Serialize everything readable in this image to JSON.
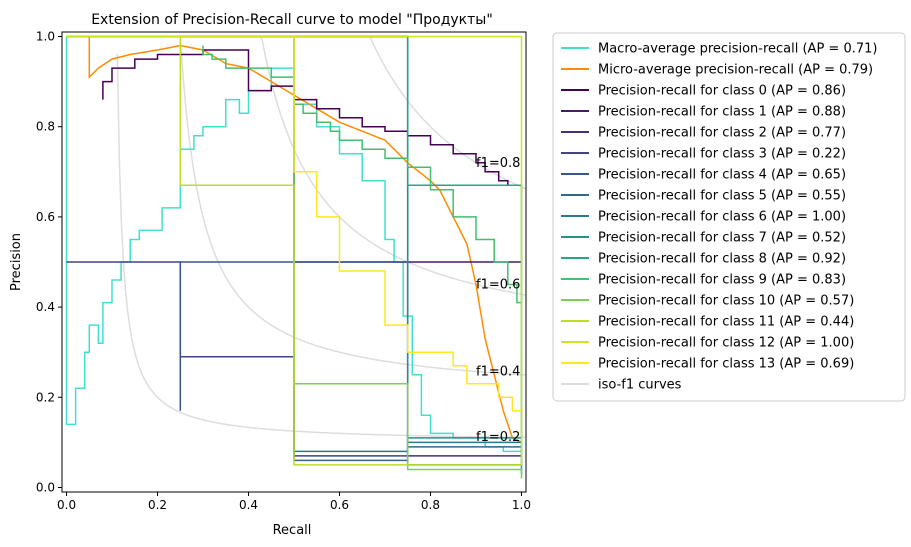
{
  "chart_data": {
    "type": "line",
    "title": "Extension of Precision-Recall curve to model \"Продукты\"",
    "xlabel": "Recall",
    "ylabel": "Precision",
    "xlim": [
      -0.01,
      1.01
    ],
    "ylim": [
      -0.01,
      1.01
    ],
    "xticks": [
      "0.0",
      "0.2",
      "0.4",
      "0.6",
      "0.8",
      "1.0"
    ],
    "yticks": [
      "0.0",
      "0.2",
      "0.4",
      "0.6",
      "0.8",
      "1.0"
    ],
    "grid": false,
    "legend_position": "outside-right",
    "iso_f1": {
      "label": "iso-f1 curves",
      "color": "#dddddd",
      "levels": [
        0.2,
        0.4,
        0.6,
        0.8
      ],
      "labels": [
        "f1=0.2",
        "f1=0.4",
        "f1=0.6",
        "f1=0.8"
      ]
    },
    "series": [
      {
        "name": "Macro-average precision-recall (AP = 0.71)",
        "color": "#40e0d0",
        "points": [
          [
            0,
            1
          ],
          [
            0,
            0.14
          ],
          [
            0.02,
            0.14
          ],
          [
            0.02,
            0.22
          ],
          [
            0.04,
            0.22
          ],
          [
            0.04,
            0.3
          ],
          [
            0.05,
            0.3
          ],
          [
            0.05,
            0.36
          ],
          [
            0.07,
            0.36
          ],
          [
            0.07,
            0.32
          ],
          [
            0.08,
            0.32
          ],
          [
            0.08,
            0.41
          ],
          [
            0.1,
            0.41
          ],
          [
            0.1,
            0.46
          ],
          [
            0.12,
            0.46
          ],
          [
            0.12,
            0.5
          ],
          [
            0.14,
            0.5
          ],
          [
            0.14,
            0.55
          ],
          [
            0.16,
            0.55
          ],
          [
            0.16,
            0.57
          ],
          [
            0.21,
            0.57
          ],
          [
            0.21,
            0.62
          ],
          [
            0.25,
            0.62
          ],
          [
            0.25,
            0.75
          ],
          [
            0.28,
            0.75
          ],
          [
            0.28,
            0.78
          ],
          [
            0.3,
            0.78
          ],
          [
            0.3,
            0.8
          ],
          [
            0.35,
            0.8
          ],
          [
            0.35,
            0.86
          ],
          [
            0.38,
            0.86
          ],
          [
            0.38,
            0.83
          ],
          [
            0.4,
            0.83
          ],
          [
            0.4,
            0.88
          ],
          [
            0.45,
            0.88
          ],
          [
            0.45,
            0.93
          ],
          [
            0.5,
            0.93
          ],
          [
            0.5,
            0.85
          ],
          [
            0.55,
            0.85
          ],
          [
            0.55,
            0.8
          ],
          [
            0.6,
            0.8
          ],
          [
            0.6,
            0.74
          ],
          [
            0.65,
            0.74
          ],
          [
            0.65,
            0.68
          ],
          [
            0.7,
            0.68
          ],
          [
            0.7,
            0.55
          ],
          [
            0.72,
            0.55
          ],
          [
            0.72,
            0.5
          ],
          [
            0.74,
            0.5
          ],
          [
            0.74,
            0.38
          ],
          [
            0.76,
            0.38
          ],
          [
            0.76,
            0.25
          ],
          [
            0.78,
            0.25
          ],
          [
            0.78,
            0.16
          ],
          [
            0.8,
            0.16
          ],
          [
            0.8,
            0.12
          ],
          [
            0.85,
            0.12
          ],
          [
            0.85,
            0.11
          ],
          [
            0.92,
            0.11
          ],
          [
            0.92,
            0.09
          ],
          [
            0.96,
            0.09
          ],
          [
            0.96,
            0.08
          ],
          [
            1,
            0.08
          ]
        ]
      },
      {
        "name": "Micro-average precision-recall (AP = 0.79)",
        "color": "#ff8c00",
        "points": [
          [
            0,
            1
          ],
          [
            0.05,
            1
          ],
          [
            0.05,
            0.91
          ],
          [
            0.07,
            0.93
          ],
          [
            0.1,
            0.95
          ],
          [
            0.14,
            0.96
          ],
          [
            0.2,
            0.97
          ],
          [
            0.25,
            0.98
          ],
          [
            0.3,
            0.97
          ],
          [
            0.35,
            0.94
          ],
          [
            0.4,
            0.93
          ],
          [
            0.45,
            0.9
          ],
          [
            0.5,
            0.87
          ],
          [
            0.55,
            0.84
          ],
          [
            0.6,
            0.81
          ],
          [
            0.65,
            0.79
          ],
          [
            0.7,
            0.77
          ],
          [
            0.75,
            0.72
          ],
          [
            0.8,
            0.68
          ],
          [
            0.82,
            0.66
          ],
          [
            0.84,
            0.62
          ],
          [
            0.86,
            0.58
          ],
          [
            0.88,
            0.54
          ],
          [
            0.9,
            0.45
          ],
          [
            0.92,
            0.33
          ],
          [
            0.94,
            0.25
          ],
          [
            0.96,
            0.17
          ],
          [
            0.98,
            0.11
          ],
          [
            1,
            0.1
          ]
        ]
      },
      {
        "name": "Precision-recall for class 0 (AP = 0.86)",
        "color": "#440154",
        "points": [
          [
            0.08,
            0.86
          ],
          [
            0.08,
            0.9
          ],
          [
            0.1,
            0.9
          ],
          [
            0.1,
            0.93
          ],
          [
            0.15,
            0.93
          ],
          [
            0.15,
            0.95
          ],
          [
            0.2,
            0.95
          ],
          [
            0.2,
            0.96
          ],
          [
            0.3,
            0.96
          ],
          [
            0.3,
            0.97
          ],
          [
            0.4,
            0.97
          ],
          [
            0.4,
            0.88
          ],
          [
            0.45,
            0.88
          ],
          [
            0.45,
            0.89
          ],
          [
            0.5,
            0.89
          ],
          [
            0.5,
            0.86
          ],
          [
            0.55,
            0.86
          ],
          [
            0.55,
            0.84
          ],
          [
            0.6,
            0.84
          ],
          [
            0.6,
            0.82
          ],
          [
            0.65,
            0.82
          ],
          [
            0.65,
            0.8
          ],
          [
            0.7,
            0.8
          ],
          [
            0.7,
            0.79
          ],
          [
            0.75,
            0.79
          ],
          [
            0.75,
            0.78
          ],
          [
            0.8,
            0.78
          ],
          [
            0.8,
            0.76
          ],
          [
            0.85,
            0.76
          ],
          [
            0.85,
            0.74
          ],
          [
            0.9,
            0.74
          ],
          [
            0.9,
            0.72
          ],
          [
            0.92,
            0.72
          ],
          [
            0.92,
            0.7
          ],
          [
            0.95,
            0.7
          ],
          [
            0.95,
            0.68
          ],
          [
            0.97,
            0.68
          ],
          [
            0.97,
            0.67
          ],
          [
            1,
            0.67
          ]
        ]
      },
      {
        "name": "Precision-recall for class 1 (AP = 0.88)",
        "color": "#481a6c",
        "points": [
          [
            0.5,
            1
          ],
          [
            0.5,
            0.5
          ],
          [
            1,
            0.5
          ]
        ]
      },
      {
        "name": "Precision-recall for class 2 (AP = 0.77)",
        "color": "#472f7d",
        "points": [
          [
            0,
            1
          ],
          [
            0.75,
            1
          ],
          [
            0.75,
            0.07
          ],
          [
            1,
            0.07
          ]
        ]
      },
      {
        "name": "Precision-recall for class 3 (AP = 0.22)",
        "color": "#414487",
        "points": [
          [
            0,
            0.5
          ],
          [
            0.25,
            0.5
          ],
          [
            0.25,
            0.29
          ],
          [
            0.5,
            0.29
          ],
          [
            0.5,
            0.07
          ],
          [
            0.75,
            0.07
          ],
          [
            0.75,
            0.12
          ]
        ]
      },
      {
        "name": "Precision-recall for class 4 (AP = 0.65)",
        "color": "#39568c",
        "points": [
          [
            0.25,
            0.17
          ],
          [
            0.25,
            0.5
          ],
          [
            0.75,
            0.5
          ],
          [
            0.75,
            0.4
          ],
          [
            0.75,
            0.05
          ],
          [
            1,
            0.05
          ]
        ]
      },
      {
        "name": "Precision-recall for class 5 (AP = 0.55)",
        "color": "#31688e",
        "points": [
          [
            0.5,
            1
          ],
          [
            0.5,
            0.06
          ],
          [
            0.75,
            0.06
          ],
          [
            0.75,
            0.09
          ],
          [
            1,
            0.09
          ]
        ]
      },
      {
        "name": "Precision-recall for class 6 (AP = 1.00)",
        "color": "#2a788e",
        "points": [
          [
            0,
            1
          ],
          [
            0.5,
            1
          ],
          [
            0.5,
            0.08
          ],
          [
            0.75,
            0.08
          ],
          [
            0.75,
            0.1
          ],
          [
            1,
            0.1
          ]
        ]
      },
      {
        "name": "Precision-recall for class 7 (AP = 0.52)",
        "color": "#21918c",
        "points": [
          [
            0,
            1
          ],
          [
            0.75,
            1
          ],
          [
            0.75,
            0.11
          ],
          [
            1,
            0.11
          ]
        ]
      },
      {
        "name": "Precision-recall for class 8 (AP = 0.92)",
        "color": "#22a884",
        "points": [
          [
            0,
            1
          ],
          [
            0.75,
            1
          ],
          [
            0.75,
            0.67
          ],
          [
            1,
            0.67
          ],
          [
            1,
            0.03
          ]
        ]
      },
      {
        "name": "Precision-recall for class 9 (AP = 0.83)",
        "color": "#44bf70",
        "points": [
          [
            0.3,
            0.98
          ],
          [
            0.3,
            0.96
          ],
          [
            0.32,
            0.96
          ],
          [
            0.32,
            0.95
          ],
          [
            0.35,
            0.95
          ],
          [
            0.35,
            0.93
          ],
          [
            0.45,
            0.93
          ],
          [
            0.45,
            0.91
          ],
          [
            0.5,
            0.91
          ],
          [
            0.5,
            0.85
          ],
          [
            0.52,
            0.85
          ],
          [
            0.52,
            0.83
          ],
          [
            0.55,
            0.83
          ],
          [
            0.55,
            0.81
          ],
          [
            0.58,
            0.81
          ],
          [
            0.58,
            0.79
          ],
          [
            0.6,
            0.79
          ],
          [
            0.6,
            0.77
          ],
          [
            0.65,
            0.77
          ],
          [
            0.65,
            0.75
          ],
          [
            0.7,
            0.75
          ],
          [
            0.7,
            0.73
          ],
          [
            0.75,
            0.73
          ],
          [
            0.75,
            0.71
          ],
          [
            0.8,
            0.71
          ],
          [
            0.8,
            0.66
          ],
          [
            0.85,
            0.66
          ],
          [
            0.85,
            0.6
          ],
          [
            0.9,
            0.6
          ],
          [
            0.9,
            0.55
          ],
          [
            0.94,
            0.55
          ],
          [
            0.94,
            0.5
          ],
          [
            0.97,
            0.5
          ],
          [
            0.97,
            0.45
          ],
          [
            0.99,
            0.45
          ],
          [
            0.99,
            0.41
          ],
          [
            1,
            0.41
          ]
        ]
      },
      {
        "name": "Precision-recall for class 10 (AP = 0.57)",
        "color": "#7ad151",
        "points": [
          [
            0,
            1
          ],
          [
            0.5,
            1
          ],
          [
            0.5,
            0.23
          ],
          [
            0.75,
            0.23
          ],
          [
            0.75,
            0.04
          ],
          [
            1,
            0.04
          ],
          [
            1,
            0.02
          ]
        ]
      },
      {
        "name": "Precision-recall for class 11 (AP = 0.44)",
        "color": "#bddf26",
        "points": [
          [
            0,
            1
          ],
          [
            0.25,
            1
          ],
          [
            0.25,
            0.67
          ],
          [
            0.5,
            0.67
          ],
          [
            0.5,
            0.05
          ],
          [
            1,
            0.05
          ]
        ]
      },
      {
        "name": "Precision-recall for class 12 (AP = 1.00)",
        "color": "#d3e21b",
        "points": [
          [
            0,
            1
          ],
          [
            1,
            1
          ],
          [
            1,
            0.05
          ]
        ]
      },
      {
        "name": "Precision-recall for class 13 (AP = 0.69)",
        "color": "#fde725",
        "points": [
          [
            0.5,
            1
          ],
          [
            0.5,
            0.7
          ],
          [
            0.55,
            0.7
          ],
          [
            0.55,
            0.6
          ],
          [
            0.6,
            0.6
          ],
          [
            0.6,
            0.48
          ],
          [
            0.7,
            0.48
          ],
          [
            0.7,
            0.36
          ],
          [
            0.75,
            0.36
          ],
          [
            0.75,
            0.3
          ],
          [
            0.85,
            0.3
          ],
          [
            0.85,
            0.27
          ],
          [
            0.88,
            0.27
          ],
          [
            0.88,
            0.23
          ],
          [
            0.95,
            0.23
          ],
          [
            0.95,
            0.2
          ],
          [
            0.98,
            0.2
          ],
          [
            0.98,
            0.17
          ],
          [
            1,
            0.17
          ]
        ]
      }
    ]
  }
}
